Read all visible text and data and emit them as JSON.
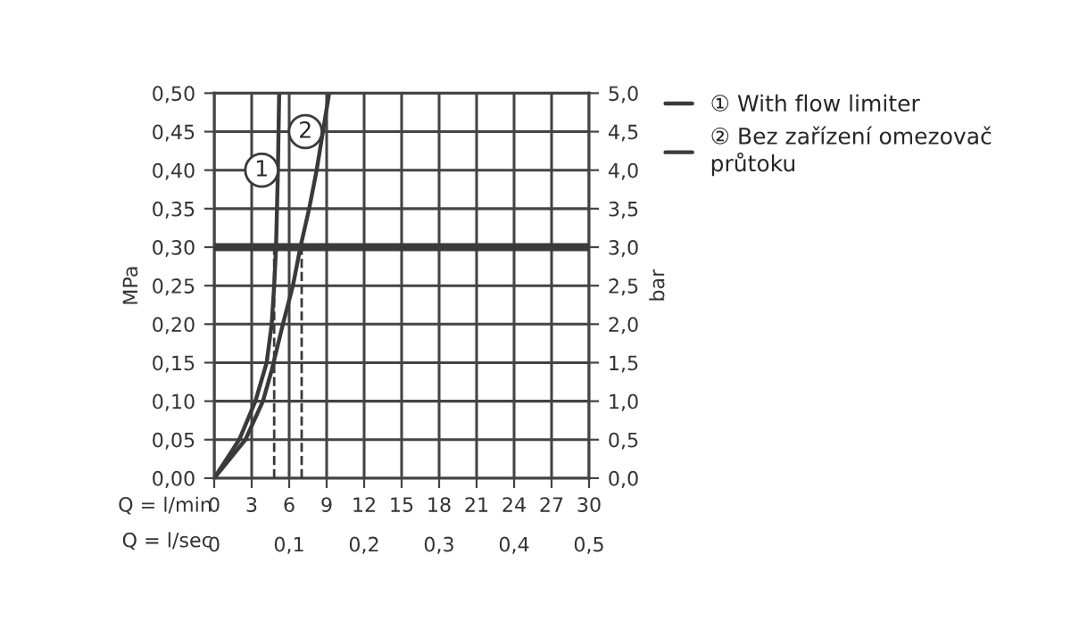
{
  "chart_data": {
    "type": "line",
    "xlabel": "Q = l/min",
    "x2label": "Q = l/sec",
    "ylabel": "MPa",
    "y2label": "bar",
    "xlim": [
      0,
      30
    ],
    "xticks": [
      0,
      3,
      6,
      9,
      12,
      15,
      18,
      21,
      24,
      27,
      30
    ],
    "x2lim": [
      0,
      0.5
    ],
    "x2ticks": [
      {
        "value": 0,
        "label": "0"
      },
      {
        "value": 0.1,
        "label": "0,1"
      },
      {
        "value": 0.2,
        "label": "0,2"
      },
      {
        "value": 0.3,
        "label": "0,3"
      },
      {
        "value": 0.4,
        "label": "0,4"
      },
      {
        "value": 0.5,
        "label": "0,5"
      }
    ],
    "ylim": [
      0,
      0.5
    ],
    "yticks": [
      {
        "value": 0,
        "label": "0,00"
      },
      {
        "value": 0.05,
        "label": "0,05"
      },
      {
        "value": 0.1,
        "label": "0,10"
      },
      {
        "value": 0.15,
        "label": "0,15"
      },
      {
        "value": 0.2,
        "label": "0,20"
      },
      {
        "value": 0.25,
        "label": "0,25"
      },
      {
        "value": 0.3,
        "label": "0,30"
      },
      {
        "value": 0.35,
        "label": "0,35"
      },
      {
        "value": 0.4,
        "label": "0,40"
      },
      {
        "value": 0.45,
        "label": "0,45"
      },
      {
        "value": 0.5,
        "label": "0,50"
      }
    ],
    "y2lim": [
      0,
      5
    ],
    "y2ticks": [
      {
        "value": 0,
        "label": "0,0"
      },
      {
        "value": 0.5,
        "label": "0,5"
      },
      {
        "value": 1,
        "label": "1,0"
      },
      {
        "value": 1.5,
        "label": "1,5"
      },
      {
        "value": 2,
        "label": "2,0"
      },
      {
        "value": 2.5,
        "label": "2,5"
      },
      {
        "value": 3,
        "label": "3,0"
      },
      {
        "value": 3.5,
        "label": "3,5"
      },
      {
        "value": 4,
        "label": "4,0"
      },
      {
        "value": 4.5,
        "label": "4,5"
      },
      {
        "value": 5,
        "label": "5,0"
      }
    ],
    "series": [
      {
        "name": "① With flow limiter",
        "color": "#3a3a3a",
        "x": [
          0,
          2.0,
          3.3,
          4.2,
          4.6,
          4.8,
          4.95,
          5.1,
          5.2
        ],
        "values": [
          0,
          0.05,
          0.1,
          0.15,
          0.2,
          0.25,
          0.3,
          0.4,
          0.5
        ]
      },
      {
        "name": "② Bez zařízení omezovač\nprůtoku",
        "color": "#3a3a3a",
        "x": [
          0,
          2.5,
          3.9,
          4.6,
          5.5,
          6.3,
          6.9,
          7.6,
          8.2,
          8.7,
          9.2
        ],
        "values": [
          0,
          0.05,
          0.1,
          0.14,
          0.2,
          0.25,
          0.3,
          0.35,
          0.4,
          0.45,
          0.5
        ]
      }
    ],
    "annotations": [
      {
        "text": "1",
        "x": 3.8,
        "y": 0.4
      },
      {
        "text": "2",
        "x": 7.3,
        "y": 0.45
      }
    ],
    "ref_lines": [
      {
        "axis": "y",
        "value": 0.3,
        "color": "#3a3a3a"
      },
      {
        "axis": "x",
        "value": 4.8,
        "color": "#3a3a3a",
        "line_style": "dashed"
      },
      {
        "axis": "x",
        "value": 7.0,
        "color": "#3a3a3a",
        "line_style": "dashed"
      }
    ],
    "grid": true,
    "legend": "top right",
    "marker": "none",
    "line_style": "solid"
  }
}
